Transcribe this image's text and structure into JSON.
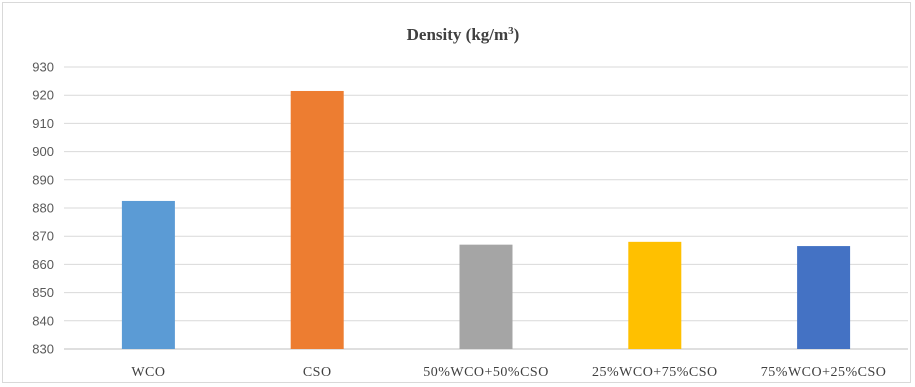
{
  "chart_data": {
    "type": "bar",
    "title": "Density (kg/m",
    "title_superscript": "3",
    "title_suffix": ")",
    "categories": [
      "WCO",
      "CSO",
      "50%WCO+50%CSO",
      "25%WCO+75%CSO",
      "75%WCO+25%CSO"
    ],
    "values": [
      882.5,
      921.5,
      867,
      868,
      866.5
    ],
    "colors": [
      "#5b9bd5",
      "#ed7d31",
      "#a5a5a5",
      "#ffc000",
      "#4472c4"
    ],
    "ylim": [
      830,
      930
    ],
    "yticks": [
      830,
      840,
      850,
      860,
      870,
      880,
      890,
      900,
      910,
      920,
      930
    ],
    "xlabel": "",
    "ylabel": "",
    "grid": true,
    "legend": "none"
  }
}
